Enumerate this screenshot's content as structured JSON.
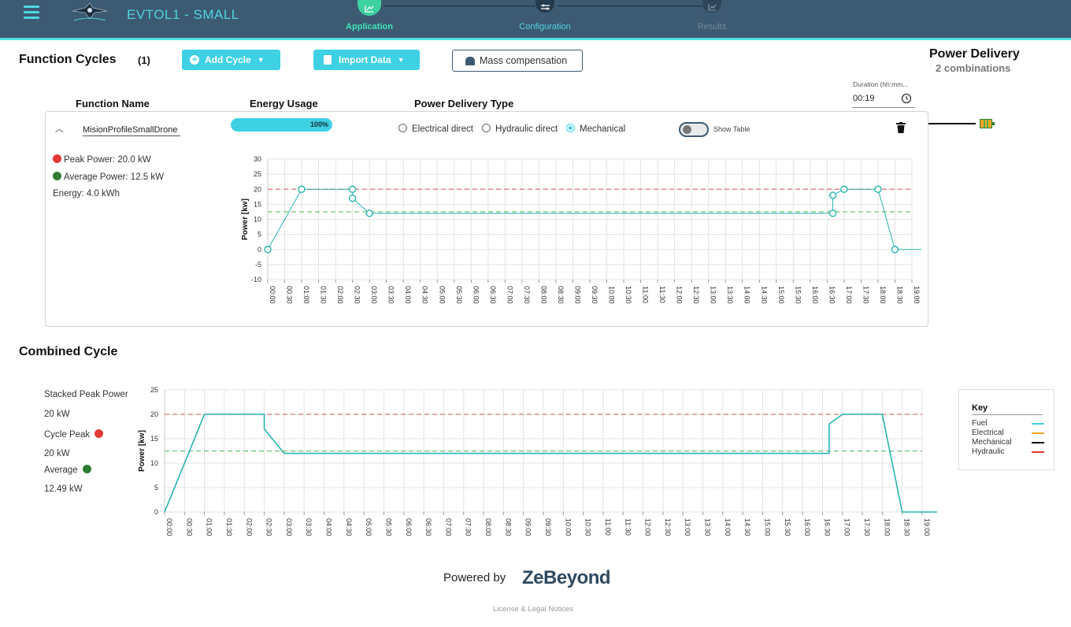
{
  "header": {
    "title": "EVTOL1 - SMALL",
    "steps": [
      {
        "label": "Application",
        "state": "active"
      },
      {
        "label": "Configuration",
        "state": "done"
      },
      {
        "label": "Results",
        "state": "disabled"
      }
    ]
  },
  "function_cycles": {
    "title": "Function Cycles",
    "count": "(1)",
    "add_cycle_label": "Add Cycle",
    "import_data_label": "Import Data",
    "mass_compensation_label": "Mass compensation",
    "col_function_name": "Function Name",
    "col_energy_usage": "Energy Usage",
    "col_power_delivery_type": "Power Delivery Type",
    "duration_label": "Duration (hh:mm...",
    "duration_value": "00:19"
  },
  "power_delivery": {
    "title": "Power Delivery",
    "subtitle": "2 combinations"
  },
  "cycle": {
    "name": "MisionProfileSmallDrone",
    "energy_usage": "100%",
    "energy_usage_fraction": 1.0,
    "delivery_options": [
      "Electrical direct",
      "Hydraulic direct",
      "Mechanical"
    ],
    "selected_delivery": "Mechanical",
    "show_table_label": "Show Table",
    "show_table_on": false,
    "peak_power": "Peak Power: 20.0 kW",
    "average_power": "Average Power: 12.5 kW",
    "energy": "Energy: 4.0 kWh"
  },
  "combined": {
    "title": "Combined Cycle",
    "stacked_peak_label": "Stacked Peak Power",
    "stacked_peak_value": "20 kW",
    "cycle_peak_label": "Cycle Peak",
    "cycle_peak_value": "20 kW",
    "average_label": "Average",
    "average_value": "12.49 kW"
  },
  "key": {
    "title": "Key",
    "items": [
      {
        "label": "Fuel",
        "color": "#3ed1e3"
      },
      {
        "label": "Electrical",
        "color": "#f5a623"
      },
      {
        "label": "Mechanical",
        "color": "#000000"
      },
      {
        "label": "Hydraulic",
        "color": "#e53935"
      }
    ]
  },
  "footer": {
    "powered_by": "Powered by",
    "brand": "ZeBeyond",
    "legal": "License & Legal Notices"
  },
  "colors": {
    "accent": "#3ed1e3",
    "header_bg": "#3d5a73",
    "line": "#26b5ae",
    "peak_line": "#e57373",
    "avg_line": "#66bb6a"
  },
  "chart_data": [
    {
      "type": "line",
      "ylabel": "Power [kw]",
      "ylim": [
        -10,
        30
      ],
      "yticks": [
        -10,
        -5,
        0,
        5,
        10,
        15,
        20,
        25,
        30
      ],
      "x_tick_labels": [
        "00:00",
        "00:30",
        "01:00",
        "01:30",
        "02:00",
        "02:30",
        "03:00",
        "03:30",
        "04:00",
        "04:30",
        "05:00",
        "05:30",
        "06:00",
        "06:30",
        "07:00",
        "07:30",
        "08:00",
        "08:30",
        "09:00",
        "09:30",
        "10:00",
        "10:30",
        "11:00",
        "11:30",
        "12:00",
        "12:30",
        "13:00",
        "13:30",
        "14:00",
        "14:30",
        "15:00",
        "15:30",
        "16:00",
        "16:30",
        "17:00",
        "17:30",
        "18:00",
        "18:30",
        "19:00"
      ],
      "series": [
        {
          "x": [
            0,
            60,
            150,
            150,
            180,
            1000,
            1000,
            1020,
            1080,
            1110,
            1200
          ],
          "y": [
            0,
            20,
            20,
            17,
            12,
            12,
            18,
            20,
            20,
            0,
            0
          ],
          "markers": true
        }
      ],
      "reference_lines": [
        {
          "y": 20,
          "color": "red"
        },
        {
          "y": 12.5,
          "color": "green"
        }
      ],
      "grid": true
    },
    {
      "type": "line",
      "ylabel": "Power [kw]",
      "ylim": [
        0,
        25
      ],
      "yticks": [
        0,
        5,
        10,
        15,
        20,
        25
      ],
      "x_tick_labels": [
        "00:00",
        "00:30",
        "01:00",
        "01:30",
        "02:00",
        "02:30",
        "03:00",
        "03:30",
        "04:00",
        "04:30",
        "05:00",
        "05:30",
        "06:00",
        "06:30",
        "07:00",
        "07:30",
        "08:00",
        "08:30",
        "09:00",
        "09:30",
        "10:00",
        "10:30",
        "11:00",
        "11:30",
        "12:00",
        "12:30",
        "13:00",
        "13:30",
        "14:00",
        "14:30",
        "15:00",
        "15:30",
        "16:00",
        "16:30",
        "17:00",
        "17:30",
        "18:00",
        "18:30",
        "19:00"
      ],
      "series": [
        {
          "x": [
            0,
            60,
            150,
            150,
            180,
            1000,
            1000,
            1020,
            1080,
            1110,
            1200
          ],
          "y": [
            0,
            20,
            20,
            17,
            12,
            12,
            18,
            20,
            20,
            0,
            0
          ],
          "markers": false
        }
      ],
      "reference_lines": [
        {
          "y": 20,
          "color": "red"
        },
        {
          "y": 12.49,
          "color": "green"
        }
      ],
      "grid": true
    }
  ]
}
